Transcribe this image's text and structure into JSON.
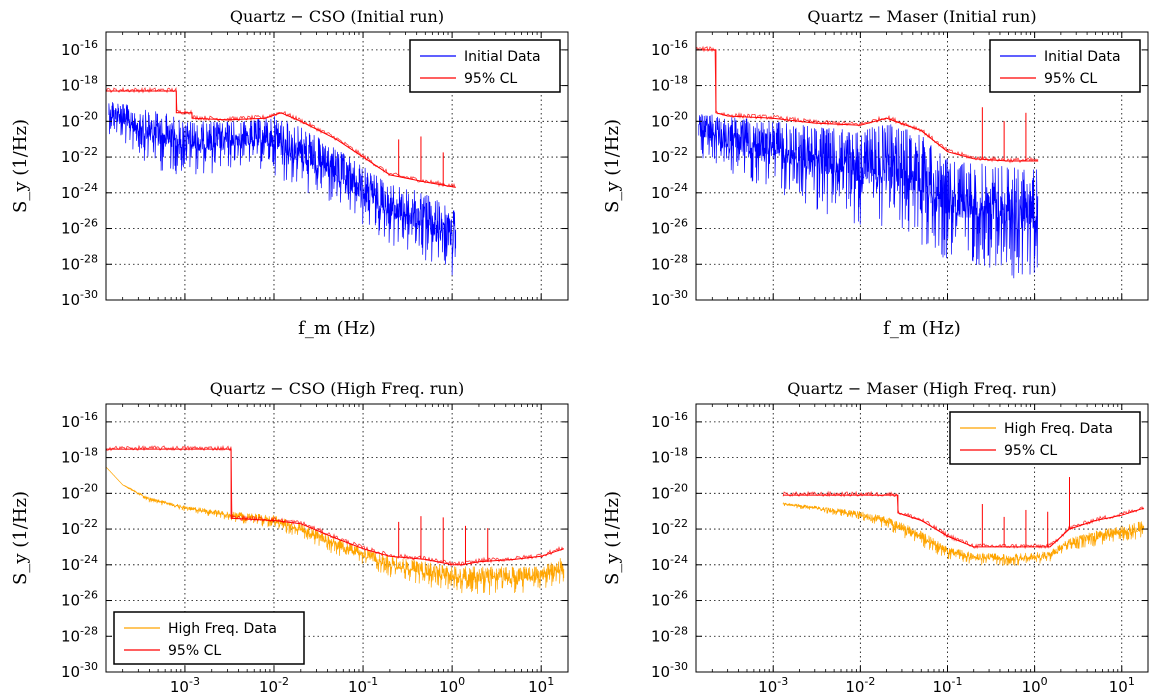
{
  "chart_data": [
    {
      "type": "line",
      "title": "Quartz − CSO (Initial run)",
      "ylabel": "S_y (1/Hz)",
      "xlabel": "f_m (Hz)",
      "xscale": "log",
      "yscale": "log",
      "xlim": [
        0.00013,
        20
      ],
      "ylim": [
        1e-30,
        1e-15
      ],
      "grid": true,
      "legend_position": "top-right",
      "x_tick_labels": [
        "",
        "",
        "",
        "",
        ""
      ],
      "y_tick_labels": [
        {
          "base": "10",
          "exp": "-16"
        },
        {
          "base": "10",
          "exp": "-18"
        },
        {
          "base": "10",
          "exp": "-20"
        },
        {
          "base": "10",
          "exp": "-22"
        },
        {
          "base": "10",
          "exp": "-24"
        },
        {
          "base": "10",
          "exp": "-26"
        },
        {
          "base": "10",
          "exp": "-28"
        },
        {
          "base": "10",
          "exp": "-30"
        }
      ],
      "series": [
        {
          "name": "Initial Data",
          "color": "#0000ff",
          "style": "noisy-band",
          "x": [
            0.00014,
            0.0003,
            0.0006,
            0.001,
            0.002,
            0.005,
            0.01,
            0.02,
            0.05,
            0.1,
            0.2,
            0.5,
            1.1
          ],
          "y_upper": [
            2e-19,
            5e-20,
            3e-20,
            1e-20,
            1e-20,
            1e-20,
            2e-20,
            5e-21,
            3e-22,
            3e-23,
            3e-24,
            1e-24,
            1e-25
          ],
          "y_lower": [
            2e-21,
            1e-22,
            1e-23,
            1e-23,
            1e-23,
            3e-23,
            1e-23,
            1e-24,
            1e-25,
            1e-26,
            1e-27,
            1e-28,
            1e-29
          ]
        },
        {
          "name": "95% CL",
          "color": "#ff0000",
          "style": "step",
          "x": [
            0.00013,
            0.0008,
            0.0008,
            0.0012,
            0.0012,
            0.003,
            0.008,
            0.012,
            0.02,
            0.05,
            0.1,
            0.2,
            0.5,
            1.1
          ],
          "y": [
            5e-19,
            5e-19,
            3e-20,
            3e-20,
            1.5e-20,
            1.2e-20,
            1.5e-20,
            3e-20,
            1e-20,
            1e-21,
            1e-22,
            1e-23,
            4e-24,
            2e-24
          ]
        }
      ]
    },
    {
      "type": "line",
      "title": "Quartz − Maser (Initial run)",
      "ylabel": "S_y (1/Hz)",
      "xlabel": "f_m (Hz)",
      "xscale": "log",
      "yscale": "log",
      "xlim": [
        0.00013,
        20
      ],
      "ylim": [
        1e-30,
        1e-15
      ],
      "grid": true,
      "legend_position": "top-right",
      "x_tick_labels": [
        "",
        "",
        "",
        "",
        ""
      ],
      "y_tick_labels": [
        {
          "base": "10",
          "exp": "-16"
        },
        {
          "base": "10",
          "exp": "-18"
        },
        {
          "base": "10",
          "exp": "-20"
        },
        {
          "base": "10",
          "exp": "-22"
        },
        {
          "base": "10",
          "exp": "-24"
        },
        {
          "base": "10",
          "exp": "-26"
        },
        {
          "base": "10",
          "exp": "-28"
        },
        {
          "base": "10",
          "exp": "-30"
        }
      ],
      "series": [
        {
          "name": "Initial Data",
          "color": "#0000ff",
          "style": "noisy-band",
          "x": [
            0.00014,
            0.0003,
            0.001,
            0.003,
            0.01,
            0.02,
            0.05,
            0.1,
            0.2,
            0.5,
            1.1
          ],
          "y_upper": [
            3e-20,
            2e-20,
            1e-20,
            5e-21,
            3e-21,
            8e-21,
            2e-21,
            8e-23,
            5e-23,
            3e-23,
            2e-23
          ],
          "y_lower": [
            1e-22,
            1e-23,
            1e-24,
            1e-25,
            1e-26,
            1e-26,
            1e-27,
            1e-28,
            1e-28,
            1e-29,
            1e-29
          ]
        },
        {
          "name": "95% CL",
          "color": "#ff0000",
          "style": "step",
          "x": [
            0.00013,
            0.00022,
            0.00022,
            0.0003,
            0.001,
            0.003,
            0.01,
            0.02,
            0.05,
            0.1,
            0.2,
            0.5,
            1.1
          ],
          "y": [
            1e-16,
            1e-16,
            3e-20,
            2e-20,
            1.5e-20,
            8e-21,
            6e-21,
            1.5e-20,
            3e-21,
            2e-22,
            8e-23,
            6e-23,
            6e-23
          ]
        }
      ]
    },
    {
      "type": "line",
      "title": "Quartz − CSO (High Freq. run)",
      "ylabel": "S_y (1/Hz)",
      "xlabel": "",
      "xscale": "log",
      "yscale": "log",
      "xlim": [
        0.00013,
        20
      ],
      "ylim": [
        1e-30,
        1e-15
      ],
      "grid": true,
      "legend_position": "bottom-left",
      "x_tick_labels": [
        {
          "base": "10",
          "exp": "-3"
        },
        {
          "base": "10",
          "exp": "-2"
        },
        {
          "base": "10",
          "exp": "-1"
        },
        {
          "base": "10",
          "exp": "0"
        },
        {
          "base": "10",
          "exp": "1"
        }
      ],
      "y_tick_labels": [
        {
          "base": "10",
          "exp": "-16"
        },
        {
          "base": "10",
          "exp": "-18"
        },
        {
          "base": "10",
          "exp": "-20"
        },
        {
          "base": "10",
          "exp": "-22"
        },
        {
          "base": "10",
          "exp": "-24"
        },
        {
          "base": "10",
          "exp": "-26"
        },
        {
          "base": "10",
          "exp": "-28"
        },
        {
          "base": "10",
          "exp": "-30"
        }
      ],
      "series": [
        {
          "name": "High Freq. Data",
          "color": "#ffa500",
          "style": "noisy-band",
          "x": [
            0.00013,
            0.0002,
            0.0004,
            0.001,
            0.003,
            0.01,
            0.02,
            0.05,
            0.1,
            0.2,
            0.5,
            1,
            2,
            5,
            10,
            18
          ],
          "y_upper": [
            3e-19,
            3e-20,
            6e-21,
            2e-21,
            1e-21,
            6e-22,
            2e-22,
            3e-23,
            8e-24,
            3e-24,
            1.5e-24,
            8e-25,
            8e-25,
            8e-25,
            8e-25,
            3e-24
          ],
          "y_lower": [
            3e-19,
            3e-20,
            3e-21,
            1e-21,
            3e-22,
            1e-22,
            3e-23,
            3e-24,
            1e-24,
            2e-25,
            6e-26,
            3e-26,
            2e-26,
            2e-26,
            3e-26,
            1e-25
          ]
        },
        {
          "name": "95% CL",
          "color": "#ff0000",
          "style": "step",
          "x": [
            0.00013,
            0.0033,
            0.0033,
            0.01,
            0.02,
            0.05,
            0.1,
            0.2,
            0.5,
            1,
            1.3,
            2,
            5,
            10,
            18
          ],
          "y": [
            3e-18,
            3e-18,
            4e-22,
            3e-22,
            2e-22,
            3e-23,
            8e-24,
            3e-24,
            2e-24,
            1e-24,
            1e-24,
            1.5e-24,
            2e-24,
            3e-24,
            8e-24
          ]
        }
      ]
    },
    {
      "type": "line",
      "title": "Quartz − Maser (High Freq. run)",
      "ylabel": "S_y (1/Hz)",
      "xlabel": "",
      "xscale": "log",
      "yscale": "log",
      "xlim": [
        0.00013,
        20
      ],
      "ylim": [
        1e-30,
        1e-15
      ],
      "grid": true,
      "legend_position": "top-right",
      "x_tick_labels": [
        {
          "base": "10",
          "exp": "-3"
        },
        {
          "base": "10",
          "exp": "-2"
        },
        {
          "base": "10",
          "exp": "-1"
        },
        {
          "base": "10",
          "exp": "0"
        },
        {
          "base": "10",
          "exp": "1"
        }
      ],
      "y_tick_labels": [
        {
          "base": "10",
          "exp": "-16"
        },
        {
          "base": "10",
          "exp": "-18"
        },
        {
          "base": "10",
          "exp": "-20"
        },
        {
          "base": "10",
          "exp": "-22"
        },
        {
          "base": "10",
          "exp": "-24"
        },
        {
          "base": "10",
          "exp": "-26"
        },
        {
          "base": "10",
          "exp": "-28"
        },
        {
          "base": "10",
          "exp": "-30"
        }
      ],
      "series": [
        {
          "name": "High Freq. Data",
          "color": "#ffa500",
          "style": "noisy-band",
          "x": [
            0.0013,
            0.003,
            0.01,
            0.02,
            0.05,
            0.1,
            0.2,
            0.5,
            1,
            1.5,
            2.5,
            5,
            10,
            18
          ],
          "y_upper": [
            3e-21,
            2e-21,
            1e-21,
            5e-22,
            8e-23,
            1e-23,
            5e-24,
            4e-24,
            5e-24,
            6e-24,
            3e-23,
            8e-23,
            1.5e-22,
            3e-22
          ],
          "y_lower": [
            2e-21,
            1e-21,
            3e-22,
            1e-22,
            1e-23,
            2e-24,
            1e-24,
            8e-25,
            1e-24,
            1.5e-24,
            6e-24,
            1e-23,
            2e-23,
            3e-23
          ]
        },
        {
          "name": "95% CL",
          "color": "#ff0000",
          "style": "step",
          "x": [
            0.0013,
            0.027,
            0.027,
            0.05,
            0.1,
            0.2,
            0.5,
            1,
            1.5,
            2.5,
            5,
            10,
            18
          ],
          "y": [
            8e-21,
            8e-21,
            8e-22,
            3e-22,
            4e-23,
            1e-23,
            1e-23,
            1e-23,
            1e-23,
            1e-22,
            3e-22,
            6e-22,
            1.5e-21
          ]
        }
      ]
    }
  ]
}
